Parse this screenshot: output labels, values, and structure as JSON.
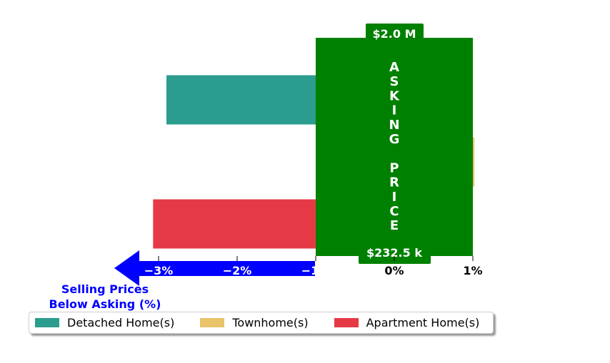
{
  "chart_data": {
    "type": "bar",
    "orientation": "horizontal",
    "categories": [
      "Detached Home(s)",
      "Townhome(s)",
      "Apartment Home(s)"
    ],
    "series": [
      {
        "name": "Detached Home(s)",
        "values": [
          -2.9,
          null,
          null
        ]
      },
      {
        "name": "Townhome(s)",
        "values": [
          null,
          1.02,
          null
        ]
      },
      {
        "name": "Apartment Home(s)",
        "values": [
          null,
          null,
          -3.07
        ]
      }
    ],
    "colors": [
      "#2a9d8f",
      "#e9c46a",
      "#e63946"
    ],
    "xlim": [
      -3.3,
      1.0
    ],
    "xticks": [
      -3,
      -2,
      -1,
      0,
      1
    ],
    "xtick_labels": [
      "−3%",
      "−2%",
      "−1%",
      "0%",
      "1%"
    ],
    "asking_band": {
      "from": -1.0,
      "to": 1.0,
      "color": "#008000",
      "letters": [
        "A",
        "S",
        "K",
        "I",
        "N",
        "G",
        "",
        "P",
        "R",
        "I",
        "C",
        "E"
      ],
      "top_label": "$2.0 M",
      "bottom_label": "$232.5 k"
    },
    "below_asking": {
      "line1": "Selling Prices",
      "line2": "Below Asking (%)",
      "color": "#0000ff"
    },
    "legend_position": "bottom-left"
  }
}
